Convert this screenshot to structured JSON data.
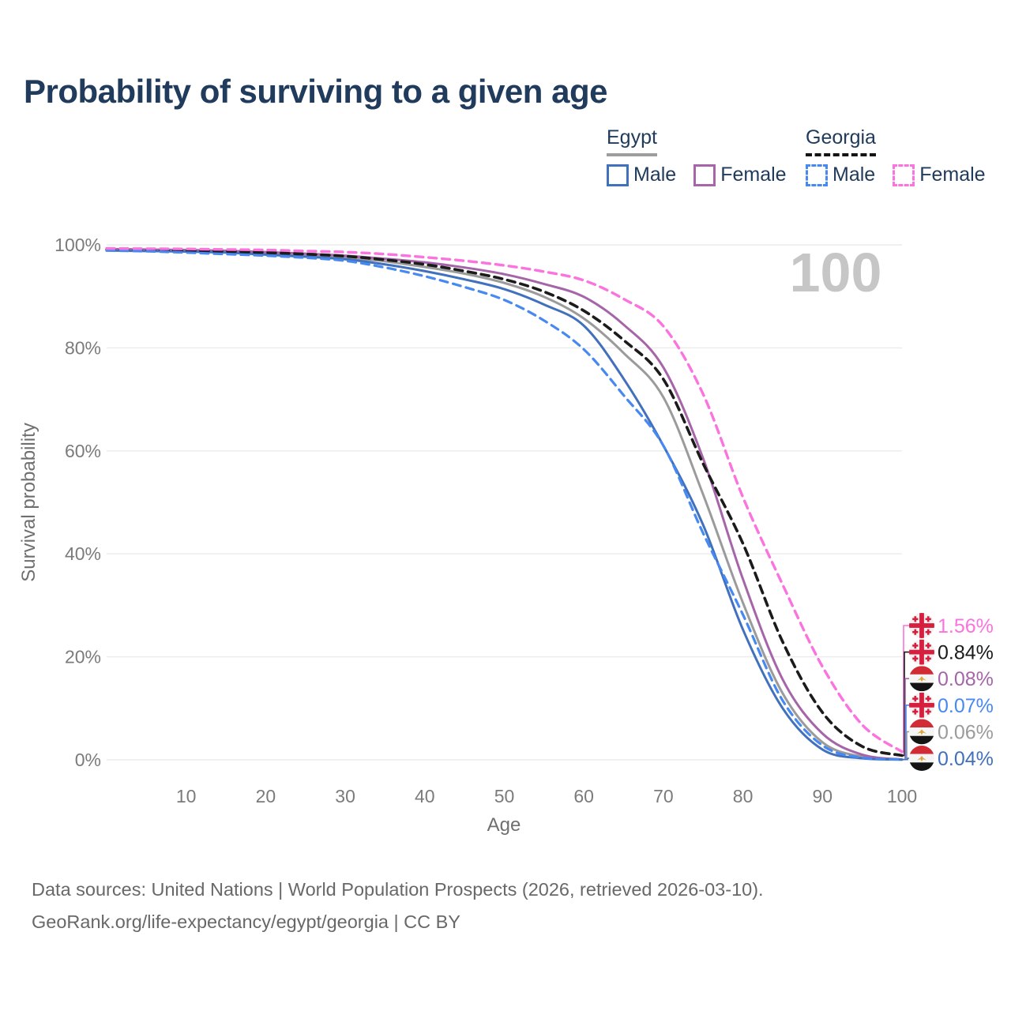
{
  "title": "Probability of surviving to a given age",
  "legend": {
    "groups": [
      {
        "name": "Egypt",
        "line_style": "solid",
        "underline_color": "#9e9e9e",
        "items": [
          {
            "label": "Male",
            "color": "#4170bd",
            "dashed": false
          },
          {
            "label": "Female",
            "color": "#a565a8",
            "dashed": false
          }
        ]
      },
      {
        "name": "Georgia",
        "line_style": "dashed",
        "underline_color": "#141414",
        "items": [
          {
            "label": "Male",
            "color": "#4789f0",
            "dashed": true
          },
          {
            "label": "Female",
            "color": "#fb73de",
            "dashed": true
          }
        ]
      }
    ]
  },
  "watermark": "100",
  "axes": {
    "y": {
      "title": "Survival probability",
      "range": [
        0,
        100
      ],
      "ticks": [
        {
          "v": 0,
          "label": "0%"
        },
        {
          "v": 20,
          "label": "20%"
        },
        {
          "v": 40,
          "label": "40%"
        },
        {
          "v": 60,
          "label": "60%"
        },
        {
          "v": 80,
          "label": "80%"
        },
        {
          "v": 100,
          "label": "100%"
        }
      ]
    },
    "x": {
      "title": "Age",
      "range": [
        0,
        100
      ],
      "ticks": [
        {
          "v": 10,
          "label": "10"
        },
        {
          "v": 20,
          "label": "20"
        },
        {
          "v": 30,
          "label": "30"
        },
        {
          "v": 40,
          "label": "40"
        },
        {
          "v": 50,
          "label": "50"
        },
        {
          "v": 60,
          "label": "60"
        },
        {
          "v": 70,
          "label": "70"
        },
        {
          "v": 80,
          "label": "80"
        },
        {
          "v": 90,
          "label": "90"
        },
        {
          "v": 100,
          "label": "100"
        }
      ]
    }
  },
  "chart_data": {
    "type": "line",
    "title": "Probability of surviving to a given age",
    "xlabel": "Age",
    "ylabel": "Survival probability",
    "xlim": [
      0,
      100
    ],
    "ylim": [
      0,
      100
    ],
    "grid": "horizontal",
    "x": [
      0,
      5,
      10,
      15,
      20,
      25,
      30,
      35,
      40,
      45,
      50,
      55,
      60,
      65,
      70,
      75,
      80,
      85,
      90,
      95,
      100
    ],
    "series": [
      {
        "name": "Egypt — Both sexes",
        "country": "Egypt",
        "sex": "both",
        "color": "#9b9b9b",
        "dashed": false,
        "width": 3,
        "values": [
          99.0,
          98.9,
          98.8,
          98.6,
          98.3,
          98.0,
          97.5,
          96.8,
          95.7,
          94.4,
          92.6,
          89.9,
          85.7,
          79.0,
          70.4,
          51.5,
          30.5,
          12.9,
          3.4,
          0.6,
          0.06
        ]
      },
      {
        "name": "Egypt — Female",
        "country": "Egypt",
        "sex": "female",
        "color": "#a565a8",
        "dashed": false,
        "width": 3,
        "values": [
          99.2,
          99.1,
          99.0,
          98.85,
          98.6,
          98.3,
          97.9,
          97.3,
          96.6,
          95.6,
          94.3,
          92.4,
          89.9,
          84.5,
          76.2,
          58.5,
          35.1,
          15.6,
          5.1,
          1.0,
          0.08
        ]
      },
      {
        "name": "Egypt — Male",
        "country": "Egypt",
        "sex": "male",
        "color": "#4170bd",
        "dashed": false,
        "width": 3,
        "values": [
          98.9,
          98.8,
          98.7,
          98.5,
          98.1,
          97.7,
          97.2,
          96.2,
          94.9,
          93.3,
          91.4,
          88.4,
          84.3,
          74.0,
          61.0,
          45.6,
          25.3,
          10.0,
          2.0,
          0.3,
          0.04
        ]
      },
      {
        "name": "Georgia — Both sexes",
        "country": "Georgia",
        "sex": "both",
        "color": "#1b1b1b",
        "dashed": true,
        "width": 3.6,
        "values": [
          99.1,
          99.0,
          98.9,
          98.75,
          98.5,
          98.2,
          97.8,
          97.1,
          96.2,
          94.9,
          93.3,
          90.9,
          87.2,
          81.5,
          73.9,
          57.5,
          42.0,
          22.9,
          9.2,
          2.6,
          0.84
        ]
      },
      {
        "name": "Georgia — Male",
        "country": "Georgia",
        "sex": "male",
        "color": "#4789f0",
        "dashed": true,
        "width": 3.2,
        "values": [
          98.9,
          98.75,
          98.5,
          98.2,
          97.9,
          97.5,
          96.9,
          95.6,
          93.9,
          91.8,
          89.3,
          85.3,
          79.7,
          70.8,
          61.0,
          44.0,
          28.2,
          11.5,
          2.8,
          0.4,
          0.07
        ]
      },
      {
        "name": "Georgia — Female",
        "country": "Georgia",
        "sex": "female",
        "color": "#fb73de",
        "dashed": true,
        "width": 3.4,
        "values": [
          99.3,
          99.25,
          99.2,
          99.1,
          99.0,
          98.8,
          98.6,
          98.2,
          97.6,
          96.9,
          96.0,
          94.8,
          93.1,
          89.5,
          84.2,
          71.0,
          51.0,
          34.0,
          18.1,
          6.8,
          1.56
        ]
      }
    ]
  },
  "end_labels": [
    {
      "value": "1.56%",
      "pct": 1.56,
      "flag": "georgia",
      "series": "Georgia — Female",
      "color": "#fb73de"
    },
    {
      "value": "0.84%",
      "pct": 0.84,
      "flag": "georgia",
      "series": "Georgia — Both sexes",
      "color": "#1b1b1b"
    },
    {
      "value": "0.08%",
      "pct": 0.08,
      "flag": "egypt",
      "series": "Egypt — Female",
      "color": "#a565a8"
    },
    {
      "value": "0.07%",
      "pct": 0.07,
      "flag": "georgia",
      "series": "Georgia — Male",
      "color": "#4789f0"
    },
    {
      "value": "0.06%",
      "pct": 0.06,
      "flag": "egypt",
      "series": "Egypt — Both sexes",
      "color": "#9b9b9b"
    },
    {
      "value": "0.04%",
      "pct": 0.04,
      "flag": "egypt",
      "series": "Egypt — Male",
      "color": "#4170bd"
    }
  ],
  "flag_colors": {
    "egypt_red": "#d12b35",
    "egypt_white": "#f5f5f5",
    "egypt_black": "#141414",
    "egypt_gold": "#dba743",
    "georgia_bg": "#f1f1f1",
    "georgia_red": "#d81e3e"
  },
  "footer": {
    "line1": "Data sources: United Nations | World Population Prospects (2026, retrieved 2026-03-10).",
    "line2": "GeoRank.org/life-expectancy/egypt/georgia | CC BY"
  }
}
